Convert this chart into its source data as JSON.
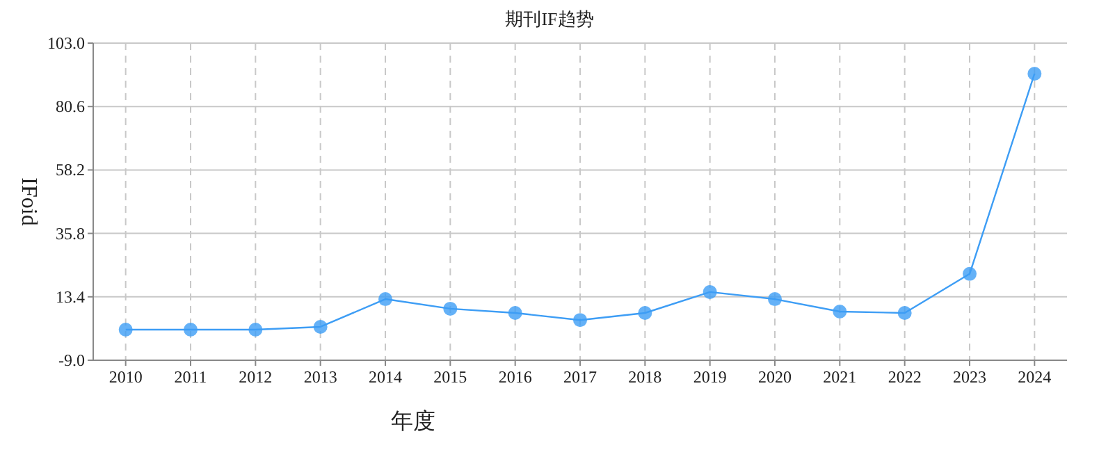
{
  "chart_data": {
    "type": "line",
    "title": "期刊IF趋势",
    "xlabel": "年度",
    "ylabel": "IFoid",
    "categories": [
      "2010",
      "2011",
      "2012",
      "2013",
      "2014",
      "2015",
      "2016",
      "2017",
      "2018",
      "2019",
      "2020",
      "2021",
      "2022",
      "2023",
      "2024"
    ],
    "series": [
      {
        "color": "#3d9df5",
        "values": [
          1.8,
          1.8,
          1.8,
          2.8,
          12.6,
          9.2,
          7.7,
          5.2,
          7.7,
          15.1,
          12.6,
          8.2,
          7.7,
          21.5,
          92.2
        ]
      }
    ],
    "ylim": [
      -9,
      103
    ],
    "yticks": [
      {
        "value": -9,
        "label": "-9.0"
      },
      13.4,
      35.8,
      58.2,
      80.6,
      {
        "value": 103,
        "label": "103.0"
      }
    ],
    "grid": true,
    "marker": "circle"
  }
}
